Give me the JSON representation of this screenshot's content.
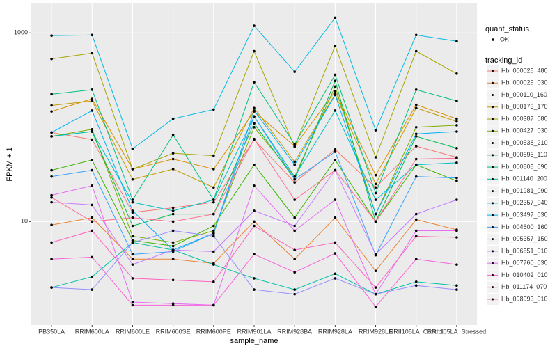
{
  "chart_data": {
    "type": "line",
    "log_y": true,
    "grid": true,
    "x_label": "sample_name",
    "y_label": "FPKM + 1",
    "point_legend_title": "quant_status",
    "point_legend_label": "OK",
    "point_color": "#000000",
    "legend_title": "tracking_id",
    "categories": [
      "PB350LA",
      "RRIM600LA",
      "RRIM600LE",
      "RRIM600SE",
      "RRIM600PE",
      "RRIM901LA",
      "RRIM928BA",
      "RRIM928LA",
      "RRIM928LE",
      "RRII105LA_Control",
      "RRII105LA_Stressed"
    ],
    "ylim": [
      0.8,
      2050
    ],
    "yticks": [
      10,
      1000
    ],
    "series": [
      {
        "name": "Hb_000025_480",
        "color": "#F8766D",
        "values": [
          88,
          74,
          12.5,
          14,
          16,
          74,
          26,
          58,
          23,
          63,
          48
        ]
      },
      {
        "name": "Hb_000029_030",
        "color": "#EA8331",
        "values": [
          9.2,
          11,
          4,
          4,
          3.6,
          10,
          4,
          11,
          3,
          10.5,
          8.2
        ]
      },
      {
        "name": "Hb_000110_160",
        "color": "#D89000",
        "values": [
          147,
          200,
          36,
          46,
          36,
          147,
          63,
          240,
          31,
          173,
          123
        ]
      },
      {
        "name": "Hb_000173_170",
        "color": "#C09B00",
        "values": [
          170,
          190,
          28,
          36,
          23,
          160,
          43,
          224,
          25,
          160,
          115
        ]
      },
      {
        "name": "Hb_000387_080",
        "color": "#A3A500",
        "values": [
          530,
          610,
          36,
          53,
          50,
          640,
          62,
          730,
          48,
          640,
          370
        ]
      },
      {
        "name": "Hb_000427_030",
        "color": "#7CAE00",
        "values": [
          80,
          95,
          7,
          6,
          8,
          100,
          30,
          270,
          12,
          100,
          105
        ]
      },
      {
        "name": "Hb_000538_210",
        "color": "#39B600",
        "values": [
          35,
          45,
          6.3,
          5.5,
          9,
          40,
          11,
          45,
          10,
          40,
          27
        ]
      },
      {
        "name": "Hb_000696_110",
        "color": "#00BB4E",
        "values": [
          80,
          90,
          9,
          12,
          12,
          110,
          28,
          310,
          10,
          80,
          60
        ]
      },
      {
        "name": "Hb_000805_090",
        "color": "#00BF7D",
        "values": [
          224,
          250,
          17,
          83,
          17,
          300,
          66,
          360,
          20,
          250,
          190
        ]
      },
      {
        "name": "Hb_001140_200",
        "color": "#00C1A3",
        "values": [
          2,
          2.6,
          6,
          5,
          3.5,
          2.5,
          1.9,
          2.8,
          1.7,
          2.3,
          2.1
        ]
      },
      {
        "name": "Hb_001981_090",
        "color": "#00BFC4",
        "values": [
          80,
          90,
          16,
          13,
          17,
          130,
          30,
          150,
          17,
          40,
          42
        ]
      },
      {
        "name": "Hb_002357_040",
        "color": "#00BAE0",
        "values": [
          936,
          950,
          59,
          123,
          154,
          1190,
          387,
          1450,
          93,
          950,
          815
        ]
      },
      {
        "name": "Hb_003497_030",
        "color": "#00B0F6",
        "values": [
          88,
          150,
          13,
          5,
          7.5,
          150,
          40,
          220,
          12,
          85,
          90
        ]
      },
      {
        "name": "Hb_004800_160",
        "color": "#35A2FF",
        "values": [
          30,
          35,
          4.5,
          4.8,
          7.5,
          130,
          28,
          55,
          4.4,
          30,
          29
        ]
      },
      {
        "name": "Hb_005357_150",
        "color": "#9590FF",
        "values": [
          2,
          1.9,
          6,
          8,
          7,
          1.9,
          1.7,
          2.5,
          1.7,
          2.1,
          1.9
        ]
      },
      {
        "name": "Hb_006551_010",
        "color": "#C77CFF",
        "values": [
          16,
          15,
          3.5,
          5,
          4.8,
          13,
          9,
          35,
          4.5,
          12,
          17
        ]
      },
      {
        "name": "Hb_007760_030",
        "color": "#E76BF3",
        "values": [
          19,
          24,
          1.4,
          1.35,
          1.3,
          24,
          8,
          17,
          1.7,
          8,
          8
        ]
      },
      {
        "name": "Hb_010402_010",
        "color": "#FA62DB",
        "values": [
          4,
          4.2,
          1.3,
          1.3,
          1.3,
          4.5,
          2.9,
          4.6,
          1.25,
          4,
          3.5
        ]
      },
      {
        "name": "Hb_011174_070",
        "color": "#FF62BC",
        "values": [
          6,
          8,
          2.5,
          2.4,
          2.3,
          9,
          5,
          6,
          2,
          7,
          6.8
        ]
      },
      {
        "name": "Hb_098993_010",
        "color": "#FF6C91",
        "values": [
          18,
          10,
          11,
          10,
          12,
          75,
          17,
          35,
          10,
          46,
          47
        ]
      }
    ]
  }
}
